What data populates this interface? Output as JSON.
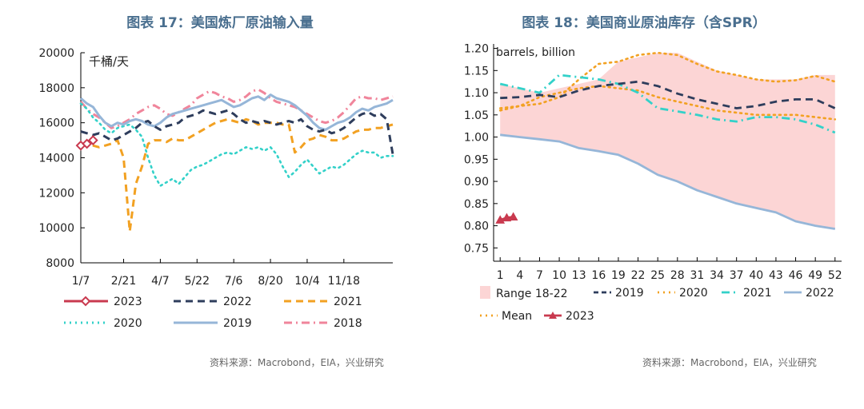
{
  "titles": {
    "left": "图表 17：美国炼厂原油输入量",
    "right": "图表 18：美国商业原油库存（含SPR）"
  },
  "sources": {
    "left": "资料来源：Macrobond，EIA，兴业研究",
    "right": "资料来源：Macrobond，EIA，兴业研究"
  },
  "colors": {
    "s2023": "#c93a4f",
    "s2022": "#2e3d5c",
    "s2021": "#f2a122",
    "s2020": "#33d1c9",
    "s2019": "#96b6d8",
    "s2018": "#f0859b",
    "range": "#fcd5d5"
  },
  "chart_data": [
    {
      "type": "line",
      "title": "图表 17：美国炼厂原油输入量",
      "ylabel": "千桶/天",
      "ylim": [
        8000,
        20000
      ],
      "yticks": [
        8000,
        10000,
        12000,
        14000,
        16000,
        18000,
        20000
      ],
      "xlim": [
        1,
        52
      ],
      "xtick_positions": [
        1,
        8,
        14,
        20,
        26,
        32,
        38,
        44
      ],
      "xtick_labels": [
        "1/7",
        "2/21",
        "4/7",
        "5/22",
        "7/6",
        "8/20",
        "10/4",
        "11/18"
      ],
      "legend_placement": "bottom",
      "series": [
        {
          "name": "2023",
          "key": "s2023",
          "style": "solid-marker",
          "x": [
            1,
            2,
            3
          ],
          "values": [
            14700,
            14800,
            15000
          ]
        },
        {
          "name": "2022",
          "key": "s2022",
          "style": "dash",
          "x": [
            1,
            2,
            3,
            4,
            5,
            6,
            7,
            8,
            9,
            10,
            11,
            12,
            13,
            14,
            15,
            16,
            17,
            18,
            19,
            20,
            21,
            22,
            23,
            24,
            25,
            26,
            27,
            28,
            29,
            30,
            31,
            32,
            33,
            34,
            35,
            36,
            37,
            38,
            39,
            40,
            41,
            42,
            43,
            44,
            45,
            46,
            47,
            48,
            49,
            50,
            51,
            52
          ],
          "values": [
            15500,
            15400,
            15300,
            15400,
            15200,
            15000,
            15100,
            15300,
            15500,
            15700,
            16000,
            16100,
            15800,
            15600,
            15800,
            15900,
            16000,
            16300,
            16400,
            16500,
            16700,
            16600,
            16500,
            16600,
            16700,
            16500,
            16200,
            16000,
            16100,
            16000,
            16100,
            16000,
            15900,
            16000,
            16100,
            16000,
            16200,
            15800,
            15600,
            15500,
            15600,
            15400,
            15500,
            15700,
            16000,
            16300,
            16500,
            16600,
            16400,
            16500,
            16200,
            14200
          ]
        },
        {
          "name": "2021",
          "key": "s2021",
          "style": "dash",
          "x": [
            1,
            2,
            3,
            4,
            5,
            6,
            7,
            8,
            9,
            10,
            11,
            12,
            13,
            14,
            15,
            16,
            17,
            18,
            19,
            20,
            21,
            22,
            23,
            24,
            25,
            26,
            27,
            28,
            29,
            30,
            31,
            32,
            33,
            34,
            35,
            36,
            37,
            38,
            39,
            40,
            41,
            42,
            43,
            44,
            45,
            46,
            47,
            48,
            49,
            50,
            51,
            52
          ],
          "values": [
            14800,
            14700,
            14700,
            14600,
            14700,
            14800,
            15000,
            14000,
            9800,
            12500,
            13500,
            14800,
            15000,
            15000,
            14900,
            15100,
            15000,
            15000,
            15200,
            15400,
            15600,
            15800,
            16000,
            16100,
            16200,
            16100,
            16000,
            16200,
            16100,
            15900,
            16000,
            16000,
            16000,
            15900,
            15900,
            14300,
            14600,
            15000,
            15100,
            15300,
            15200,
            15000,
            15000,
            15100,
            15300,
            15500,
            15600,
            15600,
            15700,
            15700,
            15800,
            15900
          ]
        },
        {
          "name": "2020",
          "key": "s2020",
          "style": "dot",
          "x": [
            1,
            2,
            3,
            4,
            5,
            6,
            7,
            8,
            9,
            10,
            11,
            12,
            13,
            14,
            15,
            16,
            17,
            18,
            19,
            20,
            21,
            22,
            23,
            24,
            25,
            26,
            27,
            28,
            29,
            30,
            31,
            32,
            33,
            34,
            35,
            36,
            37,
            38,
            39,
            40,
            41,
            42,
            43,
            44,
            45,
            46,
            47,
            48,
            49,
            50,
            51,
            52
          ],
          "values": [
            17100,
            16800,
            16300,
            16000,
            15600,
            15400,
            15700,
            15800,
            15900,
            15600,
            15200,
            14000,
            13000,
            12400,
            12600,
            12800,
            12500,
            12900,
            13300,
            13500,
            13600,
            13800,
            14000,
            14200,
            14300,
            14200,
            14400,
            14600,
            14500,
            14600,
            14400,
            14600,
            14200,
            13500,
            12900,
            13200,
            13600,
            13900,
            13500,
            13100,
            13300,
            13500,
            13400,
            13600,
            13900,
            14200,
            14400,
            14300,
            14300,
            14000,
            14100,
            14100
          ]
        },
        {
          "name": "2019",
          "key": "s2019",
          "style": "solid",
          "x": [
            1,
            2,
            3,
            4,
            5,
            6,
            7,
            8,
            9,
            10,
            11,
            12,
            13,
            14,
            15,
            16,
            17,
            18,
            19,
            20,
            21,
            22,
            23,
            24,
            25,
            26,
            27,
            28,
            29,
            30,
            31,
            32,
            33,
            34,
            35,
            36,
            37,
            38,
            39,
            40,
            41,
            42,
            43,
            44,
            45,
            46,
            47,
            48,
            49,
            50,
            51,
            52
          ],
          "values": [
            17400,
            17100,
            16900,
            16400,
            16000,
            15800,
            16000,
            15900,
            16100,
            16200,
            16100,
            15900,
            15800,
            16000,
            16300,
            16500,
            16600,
            16700,
            16800,
            16900,
            17000,
            17100,
            17200,
            17300,
            17100,
            16900,
            17000,
            17200,
            17400,
            17500,
            17300,
            17600,
            17400,
            17300,
            17200,
            17000,
            16700,
            16400,
            16000,
            15700,
            15600,
            15800,
            16000,
            16100,
            16300,
            16600,
            16800,
            16700,
            16900,
            17000,
            17100,
            17300
          ]
        },
        {
          "name": "2018",
          "key": "s2018",
          "style": "dashdot",
          "x": [
            1,
            2,
            3,
            4,
            5,
            6,
            7,
            8,
            9,
            10,
            11,
            12,
            13,
            14,
            15,
            16,
            17,
            18,
            19,
            20,
            21,
            22,
            23,
            24,
            25,
            26,
            27,
            28,
            29,
            30,
            31,
            32,
            33,
            34,
            35,
            36,
            37,
            38,
            39,
            40,
            41,
            42,
            43,
            44,
            45,
            46,
            47,
            48,
            49,
            50,
            51,
            52
          ],
          "values": [
            17200,
            16800,
            16500,
            16300,
            16000,
            15700,
            15800,
            16000,
            16200,
            16500,
            16700,
            16900,
            17000,
            16800,
            16500,
            16400,
            16600,
            16800,
            17000,
            17400,
            17600,
            17800,
            17700,
            17500,
            17400,
            17200,
            17300,
            17500,
            17800,
            17900,
            17700,
            17400,
            17200,
            17100,
            17000,
            16900,
            16700,
            16500,
            16300,
            16100,
            16000,
            16100,
            16300,
            16600,
            17000,
            17400,
            17500,
            17400,
            17400,
            17300,
            17400,
            17500
          ]
        }
      ]
    },
    {
      "type": "area",
      "title": "图表 18：美国商业原油库存（含SPR）",
      "ylabel": "barrels, billion",
      "ylim": [
        0.72,
        1.21
      ],
      "yticks": [
        "1.20",
        "1.15",
        "1.10",
        "1.05",
        "1.00",
        "0.95",
        "0.90",
        "0.85",
        "0.80",
        "0.75"
      ],
      "xlim": [
        0,
        53
      ],
      "xticks": [
        1,
        4,
        7,
        10,
        13,
        16,
        19,
        22,
        25,
        28,
        31,
        34,
        37,
        40,
        43,
        46,
        49,
        52
      ],
      "legend_placement": "bottom",
      "range": {
        "name": "Range 18-22",
        "x": [
          1,
          4,
          7,
          10,
          13,
          16,
          19,
          22,
          25,
          28,
          31,
          34,
          37,
          40,
          43,
          46,
          49,
          52
        ],
        "upper": [
          1.12,
          1.11,
          1.1,
          1.11,
          1.12,
          1.13,
          1.17,
          1.18,
          1.19,
          1.19,
          1.17,
          1.15,
          1.14,
          1.13,
          1.13,
          1.13,
          1.14,
          1.14
        ],
        "lower": [
          1.005,
          1.0,
          0.995,
          0.99,
          0.975,
          0.968,
          0.96,
          0.94,
          0.915,
          0.9,
          0.88,
          0.865,
          0.85,
          0.84,
          0.83,
          0.81,
          0.8,
          0.793
        ]
      },
      "series": [
        {
          "name": "2019",
          "key": "s2019c",
          "style": "dash",
          "x": [
            1,
            4,
            7,
            10,
            13,
            16,
            19,
            22,
            25,
            28,
            31,
            34,
            37,
            40,
            43,
            46,
            49,
            52
          ],
          "values": [
            1.088,
            1.09,
            1.095,
            1.09,
            1.105,
            1.115,
            1.12,
            1.125,
            1.115,
            1.098,
            1.085,
            1.075,
            1.065,
            1.07,
            1.08,
            1.085,
            1.085,
            1.065
          ]
        },
        {
          "name": "2020",
          "key": "s2020c",
          "style": "dot",
          "x": [
            1,
            4,
            7,
            10,
            13,
            16,
            19,
            22,
            25,
            28,
            31,
            34,
            37,
            40,
            43,
            46,
            49,
            52
          ],
          "values": [
            1.065,
            1.07,
            1.075,
            1.09,
            1.13,
            1.165,
            1.17,
            1.185,
            1.19,
            1.185,
            1.165,
            1.148,
            1.14,
            1.13,
            1.125,
            1.128,
            1.138,
            1.125
          ]
        },
        {
          "name": "2021",
          "key": "s2021c",
          "style": "dashdot",
          "x": [
            1,
            4,
            7,
            10,
            13,
            16,
            19,
            22,
            25,
            28,
            31,
            34,
            37,
            40,
            43,
            46,
            49,
            52
          ],
          "values": [
            1.12,
            1.11,
            1.1,
            1.14,
            1.135,
            1.13,
            1.12,
            1.1,
            1.065,
            1.058,
            1.05,
            1.04,
            1.035,
            1.045,
            1.045,
            1.04,
            1.028,
            1.01
          ]
        },
        {
          "name": "2022",
          "key": "s2022c",
          "style": "solid",
          "x": [
            1,
            4,
            7,
            10,
            13,
            16,
            19,
            22,
            25,
            28,
            31,
            34,
            37,
            40,
            43,
            46,
            49,
            52
          ],
          "values": [
            1.005,
            1.0,
            0.995,
            0.99,
            0.975,
            0.968,
            0.96,
            0.94,
            0.915,
            0.9,
            0.88,
            0.865,
            0.85,
            0.84,
            0.83,
            0.81,
            0.8,
            0.793
          ]
        },
        {
          "name": "Mean",
          "key": "meanc",
          "style": "dot",
          "x": [
            1,
            4,
            7,
            10,
            13,
            16,
            19,
            22,
            25,
            28,
            31,
            34,
            37,
            40,
            43,
            46,
            49,
            52
          ],
          "values": [
            1.06,
            1.07,
            1.09,
            1.1,
            1.11,
            1.115,
            1.11,
            1.105,
            1.09,
            1.08,
            1.07,
            1.06,
            1.055,
            1.05,
            1.05,
            1.05,
            1.045,
            1.04
          ]
        },
        {
          "name": "2023",
          "key": "s2023c",
          "style": "solid-marker",
          "x": [
            1,
            2,
            3
          ],
          "values": [
            0.813,
            0.818,
            0.82
          ]
        }
      ]
    }
  ]
}
